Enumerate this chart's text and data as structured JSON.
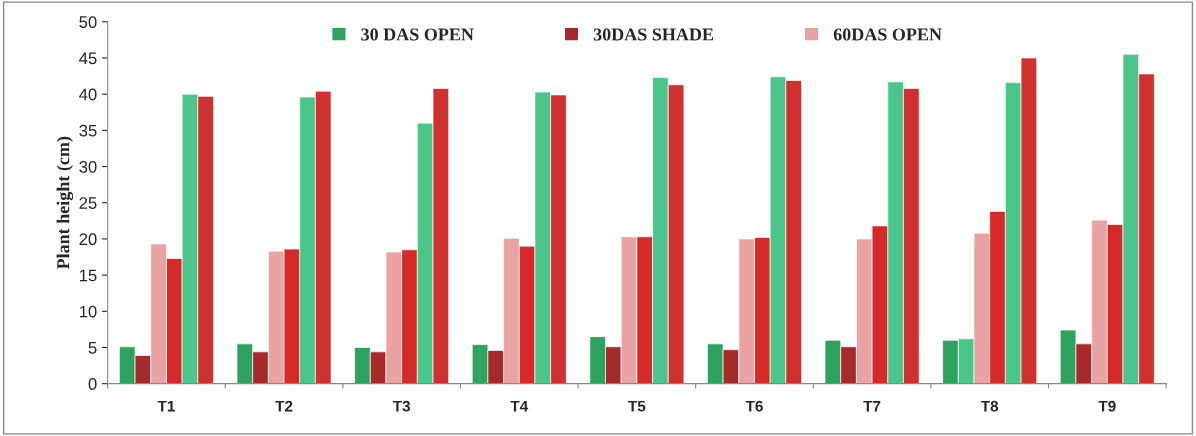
{
  "chart_data": {
    "type": "bar",
    "ylabel": "Plant height (cm)",
    "categories": [
      "T1",
      "T2",
      "T3",
      "T4",
      "T5",
      "T6",
      "T7",
      "T8",
      "T9"
    ],
    "series": [
      {
        "name": "30 DAS OPEN",
        "color": "#2ea35f",
        "values": [
          5.1,
          5.5,
          5.0,
          5.4,
          6.5,
          5.5,
          6.0,
          6.0,
          7.4
        ]
      },
      {
        "name": "30DAS SHADE",
        "colors": [
          "#a52a2a",
          "#a52a2a",
          "#a52a2a",
          "#a52a2a",
          "#a52a2a",
          "#a52a2a",
          "#a52a2a",
          "#4cc58a",
          "#a52a2a"
        ],
        "values": [
          3.9,
          4.4,
          4.4,
          4.6,
          5.1,
          4.7,
          5.1,
          6.2,
          5.5
        ]
      },
      {
        "name": "60DAS OPEN",
        "color": "#e9a3a3",
        "values": [
          19.3,
          18.3,
          18.2,
          20.1,
          20.3,
          20.0,
          20.0,
          20.8,
          22.6
        ]
      },
      {
        "color": "#d42a2a",
        "values": [
          17.3,
          18.6,
          18.5,
          19.0,
          20.3,
          20.2,
          21.8,
          23.8,
          22.0
        ]
      },
      {
        "color": "#4cc58a",
        "values": [
          40.0,
          39.6,
          36.0,
          40.3,
          42.3,
          42.4,
          41.7,
          41.6,
          45.5
        ]
      },
      {
        "color": "#cf3030",
        "values": [
          39.7,
          40.4,
          40.8,
          39.9,
          41.3,
          41.9,
          40.8,
          45.0,
          42.8
        ]
      }
    ],
    "ylim": [
      0,
      50
    ],
    "yticks": [
      0,
      5,
      10,
      15,
      20,
      25,
      30,
      35,
      40,
      45,
      50
    ],
    "legend": "top",
    "grid": false
  }
}
